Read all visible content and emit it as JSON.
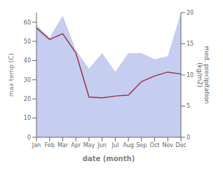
{
  "chart_data": {
    "type": "line",
    "categories": [
      "Jan",
      "Feb",
      "Mar",
      "Apr",
      "May",
      "Jun",
      "Jul",
      "Aug",
      "Sep",
      "Oct",
      "Nov",
      "Dec"
    ],
    "xlabel": "date (month)",
    "ylabel": "max temp (C)",
    "y2label": "med. precipitation\n(kg/m2)",
    "ylim": [
      0,
      65
    ],
    "yticks": [
      0,
      10,
      20,
      30,
      40,
      50,
      60
    ],
    "y2lim": [
      0,
      20
    ],
    "y2ticks": [
      0,
      5,
      10,
      15,
      20
    ],
    "series": [
      {
        "type": "area",
        "axis": "y2",
        "color": "#c5cdf0",
        "values": [
          18,
          16,
          19.5,
          14,
          11,
          13.5,
          10.5,
          13.5,
          13.5,
          12.5,
          13,
          20
        ]
      },
      {
        "type": "line",
        "color": "#993344",
        "values": [
          57,
          51,
          54,
          44,
          21,
          20.5,
          21.5,
          22,
          29,
          32,
          34,
          33
        ]
      }
    ]
  }
}
